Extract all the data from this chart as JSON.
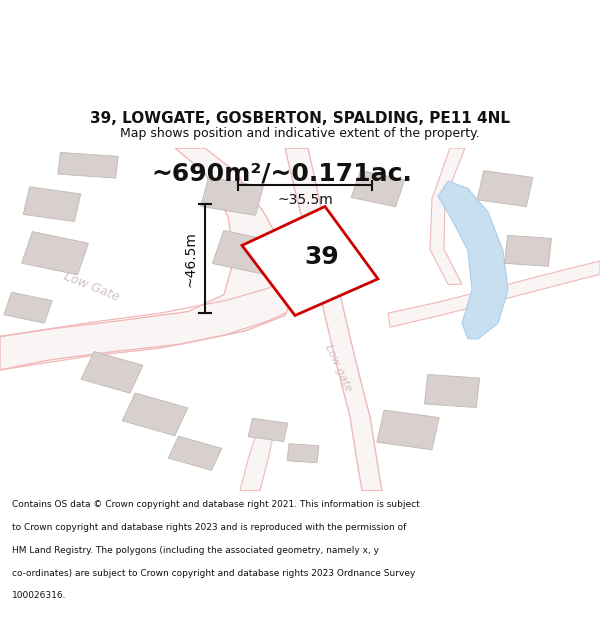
{
  "title": "39, LOWGATE, GOSBERTON, SPALDING, PE11 4NL",
  "subtitle": "Map shows position and indicative extent of the property.",
  "area_text": "~690m²/~0.171ac.",
  "label_39": "39",
  "dim_horizontal": "~35.5m",
  "dim_vertical": "~46.5m",
  "street_label_1": "Low Gate",
  "street_label_2": "Low gate",
  "footer_lines": [
    "Contains OS data © Crown copyright and database right 2021. This information is subject",
    "to Crown copyright and database rights 2023 and is reproduced with the permission of",
    "HM Land Registry. The polygons (including the associated geometry, namely x, y",
    "co-ordinates) are subject to Crown copyright and database rights 2023 Ordnance Survey",
    "100026316."
  ],
  "map_bg": "#f7f4f2",
  "road_color": "#f0b8b8",
  "road_fill": "#faf5f5",
  "building_color": "#d8d0cc",
  "building_edge": "#c0b8b4",
  "water_color": "#c8dff0",
  "water_edge": "#aaccee",
  "plot_outline_color": "#cc0000",
  "plot_fill": "#ffffff",
  "dim_line_color": "#111111",
  "text_color": "#111111",
  "title_fontsize": 11,
  "subtitle_fontsize": 9,
  "area_fontsize": 18,
  "label_fontsize": 18,
  "dim_fontsize": 10,
  "footer_fontsize": 6.5
}
